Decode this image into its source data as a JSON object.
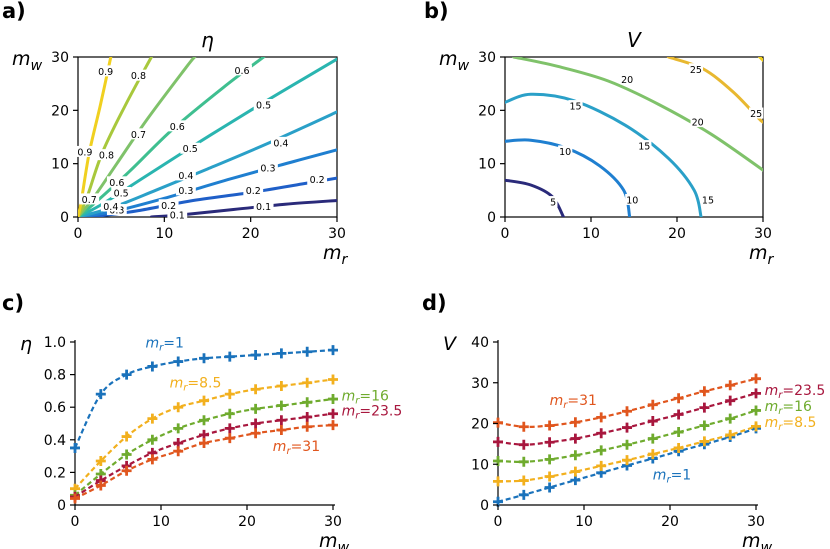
{
  "colors": {
    "c01": "#2a2a7a",
    "c02": "#1f5fc8",
    "c03": "#1f7fd0",
    "c04": "#2aa0c8",
    "c05": "#2ab5b0",
    "c06": "#3fbf90",
    "c07": "#7fc26a",
    "c08": "#a8c83c",
    "c09": "#e8b830",
    "c10": "#f0d020",
    "mr1": "#1a72bb",
    "mr85": "#f2b01e",
    "mr16": "#6fab2e",
    "mr235": "#a8173e",
    "mr31": "#e0561e"
  },
  "chart_data": [
    {
      "panel": "a)",
      "type": "contour",
      "title": "η",
      "xlabel": "m_r",
      "ylabel": "m_w",
      "xlim": [
        0,
        30
      ],
      "ylim": [
        0,
        30
      ],
      "xticks": [
        "0",
        "10",
        "20",
        "30"
      ],
      "yticks": [
        "0",
        "10",
        "20",
        "30"
      ],
      "levels": [
        {
          "value": 0.1,
          "label": "0.1",
          "color": "c01",
          "points": [
            [
              8.5,
              0
            ],
            [
              12,
              0.4
            ],
            [
              18,
              1.4
            ],
            [
              24,
              2.4
            ],
            [
              30,
              3.1
            ]
          ],
          "labels": [
            [
              11.5,
              0.4
            ],
            [
              21.5,
              2.0
            ]
          ]
        },
        {
          "value": 0.2,
          "label": "0.2",
          "color": "c02",
          "points": [
            [
              0,
              0
            ],
            [
              3,
              0.3
            ],
            [
              7,
              1.2
            ],
            [
              13,
              3.0
            ],
            [
              20,
              4.6
            ],
            [
              26,
              6.2
            ],
            [
              30,
              7.3
            ]
          ],
          "labels": [
            [
              10.5,
              2.2
            ],
            [
              20.3,
              5.0
            ],
            [
              27.7,
              7.0
            ]
          ]
        },
        {
          "value": 0.3,
          "label": "0.3",
          "color": "c03",
          "points": [
            [
              0,
              0
            ],
            [
              4,
              1.0
            ],
            [
              10,
              3.5
            ],
            [
              18,
              7.3
            ],
            [
              25,
              10.4
            ],
            [
              30,
              12.6
            ]
          ],
          "labels": [
            [
              4.5,
              1.3
            ],
            [
              12.5,
              5.0
            ],
            [
              22,
              9.2
            ]
          ]
        },
        {
          "value": 0.4,
          "label": "0.4",
          "color": "c04",
          "points": [
            [
              0,
              0
            ],
            [
              4,
              1.8
            ],
            [
              9,
              5.0
            ],
            [
              15,
              9.0
            ],
            [
              22,
              13.8
            ],
            [
              30,
              19.7
            ]
          ],
          "labels": [
            [
              3.8,
              2.0
            ],
            [
              12.5,
              7.8
            ],
            [
              23.5,
              13.9
            ]
          ]
        },
        {
          "value": 0.5,
          "label": "0.5",
          "color": "c05",
          "points": [
            [
              0,
              0
            ],
            [
              3,
              2.6
            ],
            [
              8,
              7.8
            ],
            [
              14,
              14.0
            ],
            [
              20,
              20.0
            ],
            [
              26,
              25.8
            ],
            [
              30,
              29.6
            ]
          ],
          "labels": [
            [
              5.0,
              4.5
            ],
            [
              13,
              12.8
            ],
            [
              21.5,
              21
            ]
          ]
        },
        {
          "value": 0.6,
          "label": "0.6",
          "color": "c06",
          "points": [
            [
              0,
              0
            ],
            [
              2,
              2.7
            ],
            [
              6,
              8.6
            ],
            [
              11,
              16.5
            ],
            [
              17,
              24.5
            ],
            [
              21.5,
              30
            ]
          ],
          "labels": [
            [
              4.5,
              6.5
            ],
            [
              11.5,
              17
            ],
            [
              19,
              27.5
            ]
          ]
        },
        {
          "value": 0.7,
          "label": "0.7",
          "color": "c07",
          "points": [
            [
              0,
              0
            ],
            [
              1.7,
              3.4
            ],
            [
              4.5,
              10.0
            ],
            [
              8,
              18.3
            ],
            [
              12.5,
              28.0
            ],
            [
              13.5,
              30
            ]
          ],
          "labels": [
            [
              1.3,
              3.3
            ],
            [
              7,
              15.5
            ]
          ]
        },
        {
          "value": 0.8,
          "label": "0.8",
          "color": "c08",
          "points": [
            [
              0,
              0
            ],
            [
              1,
              3.5
            ],
            [
              2.8,
              12.0
            ],
            [
              5.5,
              21.0
            ],
            [
              8.5,
              30
            ]
          ],
          "labels": [
            [
              3.3,
              11.6
            ],
            [
              7,
              26.5
            ]
          ]
        },
        {
          "value": 0.9,
          "label": "0.9",
          "color": "c10",
          "points": [
            [
              0,
              0
            ],
            [
              0.4,
              3.2
            ],
            [
              1.3,
              12.0
            ],
            [
              2.6,
              21.0
            ],
            [
              3.8,
              30
            ]
          ],
          "labels": [
            [
              0.8,
              12.2
            ],
            [
              3.2,
              27.3
            ]
          ]
        }
      ]
    },
    {
      "panel": "b)",
      "type": "contour",
      "title": "V",
      "xlabel": "m_r",
      "ylabel": "m_w",
      "xlim": [
        0,
        30
      ],
      "ylim": [
        0,
        30
      ],
      "xticks": [
        "0",
        "10",
        "20",
        "30"
      ],
      "yticks": [
        "0",
        "10",
        "20",
        "30"
      ],
      "levels": [
        {
          "value": 5,
          "label": "5",
          "color": "c01",
          "points": [
            [
              0,
              6.9
            ],
            [
              3,
              6.0
            ],
            [
              5.5,
              3.8
            ],
            [
              6.8,
              0
            ]
          ],
          "labels": [
            [
              5.6,
              2.8
            ]
          ]
        },
        {
          "value": 10,
          "label": "10",
          "color": "c03",
          "points": [
            [
              0,
              14.2
            ],
            [
              3,
              14.4
            ],
            [
              7,
              13.0
            ],
            [
              11,
              9.6
            ],
            [
              13.8,
              5.0
            ],
            [
              14.5,
              0
            ]
          ],
          "labels": [
            [
              7.0,
              12.3
            ],
            [
              14.8,
              3.2
            ]
          ]
        },
        {
          "value": 15,
          "label": "15",
          "color": "c04",
          "points": [
            [
              0,
              21.5
            ],
            [
              3,
              23.0
            ],
            [
              8,
              21.8
            ],
            [
              14,
              17.2
            ],
            [
              19,
              11.0
            ],
            [
              22,
              5.0
            ],
            [
              22.8,
              0
            ]
          ],
          "labels": [
            [
              8.2,
              20.8
            ],
            [
              16.2,
              13.3
            ],
            [
              23.6,
              3.2
            ]
          ]
        },
        {
          "value": 20,
          "label": "20",
          "color": "c07",
          "points": [
            [
              1,
              30
            ],
            [
              6,
              28.3
            ],
            [
              12,
              25.5
            ],
            [
              18,
              21.0
            ],
            [
              24,
              15.5
            ],
            [
              30,
              8.8
            ]
          ],
          "labels": [
            [
              14.2,
              25.8
            ],
            [
              22.4,
              17.8
            ]
          ]
        },
        {
          "value": 25,
          "label": "25",
          "color": "c09",
          "points": [
            [
              19,
              30
            ],
            [
              23,
              27.8
            ],
            [
              26.5,
              23.5
            ],
            [
              29.5,
              18.5
            ],
            [
              30,
              17.8
            ]
          ],
          "labels": [
            [
              22.2,
              27.7
            ],
            [
              29.2,
              19.4
            ]
          ]
        },
        {
          "value": 30,
          "label": "",
          "color": "c10",
          "points": [
            [
              29.6,
              30
            ],
            [
              30,
              29.4
            ]
          ],
          "labels": []
        }
      ]
    },
    {
      "panel": "c)",
      "type": "line",
      "ylabel": "η",
      "xlabel": "m_w",
      "xlim": [
        0,
        30
      ],
      "ylim": [
        0,
        1
      ],
      "xticks": [
        "0",
        "10",
        "20",
        "30"
      ],
      "yticks": [
        "0",
        "0.2",
        "0.4",
        "0.6",
        "0.8",
        "1.0"
      ],
      "x": [
        0,
        3,
        6,
        9,
        12,
        15,
        18,
        21,
        24,
        27,
        30
      ],
      "series": [
        {
          "name": "m_r=1",
          "r_value": "1",
          "color": "mr1",
          "values": [
            0.35,
            0.68,
            0.8,
            0.85,
            0.88,
            0.9,
            0.91,
            0.92,
            0.93,
            0.94,
            0.95
          ]
        },
        {
          "name": "m_r=8.5",
          "r_value": "8.5",
          "color": "mr85",
          "values": [
            0.1,
            0.27,
            0.42,
            0.53,
            0.6,
            0.64,
            0.68,
            0.71,
            0.73,
            0.75,
            0.77
          ]
        },
        {
          "name": "m_r=16",
          "r_value": "16",
          "color": "mr16",
          "values": [
            0.06,
            0.19,
            0.31,
            0.4,
            0.47,
            0.52,
            0.56,
            0.59,
            0.61,
            0.63,
            0.65
          ]
        },
        {
          "name": "m_r=23.5",
          "r_value": "23.5",
          "color": "mr235",
          "values": [
            0.05,
            0.15,
            0.24,
            0.32,
            0.38,
            0.43,
            0.47,
            0.5,
            0.52,
            0.54,
            0.56
          ]
        },
        {
          "name": "m_r=31",
          "r_value": "31",
          "color": "mr31",
          "values": [
            0.04,
            0.12,
            0.21,
            0.28,
            0.33,
            0.38,
            0.41,
            0.44,
            0.46,
            0.48,
            0.49
          ]
        }
      ]
    },
    {
      "panel": "d)",
      "type": "line",
      "ylabel": "V",
      "xlabel": "m_w",
      "xlim": [
        0,
        30
      ],
      "ylim": [
        0,
        40
      ],
      "xticks": [
        "0",
        "10",
        "20",
        "30"
      ],
      "yticks": [
        "0",
        "10",
        "20",
        "30",
        "40"
      ],
      "x": [
        0,
        3,
        6,
        9,
        12,
        15,
        18,
        21,
        24,
        27,
        30
      ],
      "series": [
        {
          "name": "m_r=1",
          "r_value": "1",
          "color": "mr1",
          "values": [
            0.8,
            2.5,
            4.3,
            6.1,
            7.9,
            9.7,
            11.4,
            13.2,
            14.9,
            16.7,
            18.8
          ]
        },
        {
          "name": "m_r=8.5",
          "r_value": "8.5",
          "color": "mr85",
          "values": [
            5.8,
            6.0,
            7.0,
            8.2,
            9.6,
            11.0,
            12.5,
            14.0,
            15.6,
            17.2,
            19.3
          ]
        },
        {
          "name": "m_r=16",
          "r_value": "16",
          "color": "mr16",
          "values": [
            10.8,
            10.6,
            11.2,
            12.2,
            13.4,
            14.8,
            16.3,
            17.9,
            19.5,
            21.2,
            23.2
          ]
        },
        {
          "name": "m_r=23.5",
          "r_value": "23.5",
          "color": "mr235",
          "values": [
            15.5,
            14.8,
            15.4,
            16.3,
            17.6,
            19.0,
            20.6,
            22.2,
            23.9,
            25.6,
            27.4
          ]
        },
        {
          "name": "m_r=31",
          "r_value": "31",
          "color": "mr31",
          "values": [
            20.2,
            19.2,
            19.5,
            20.3,
            21.5,
            23.0,
            24.6,
            26.2,
            27.9,
            29.4,
            31.0
          ]
        }
      ]
    }
  ]
}
